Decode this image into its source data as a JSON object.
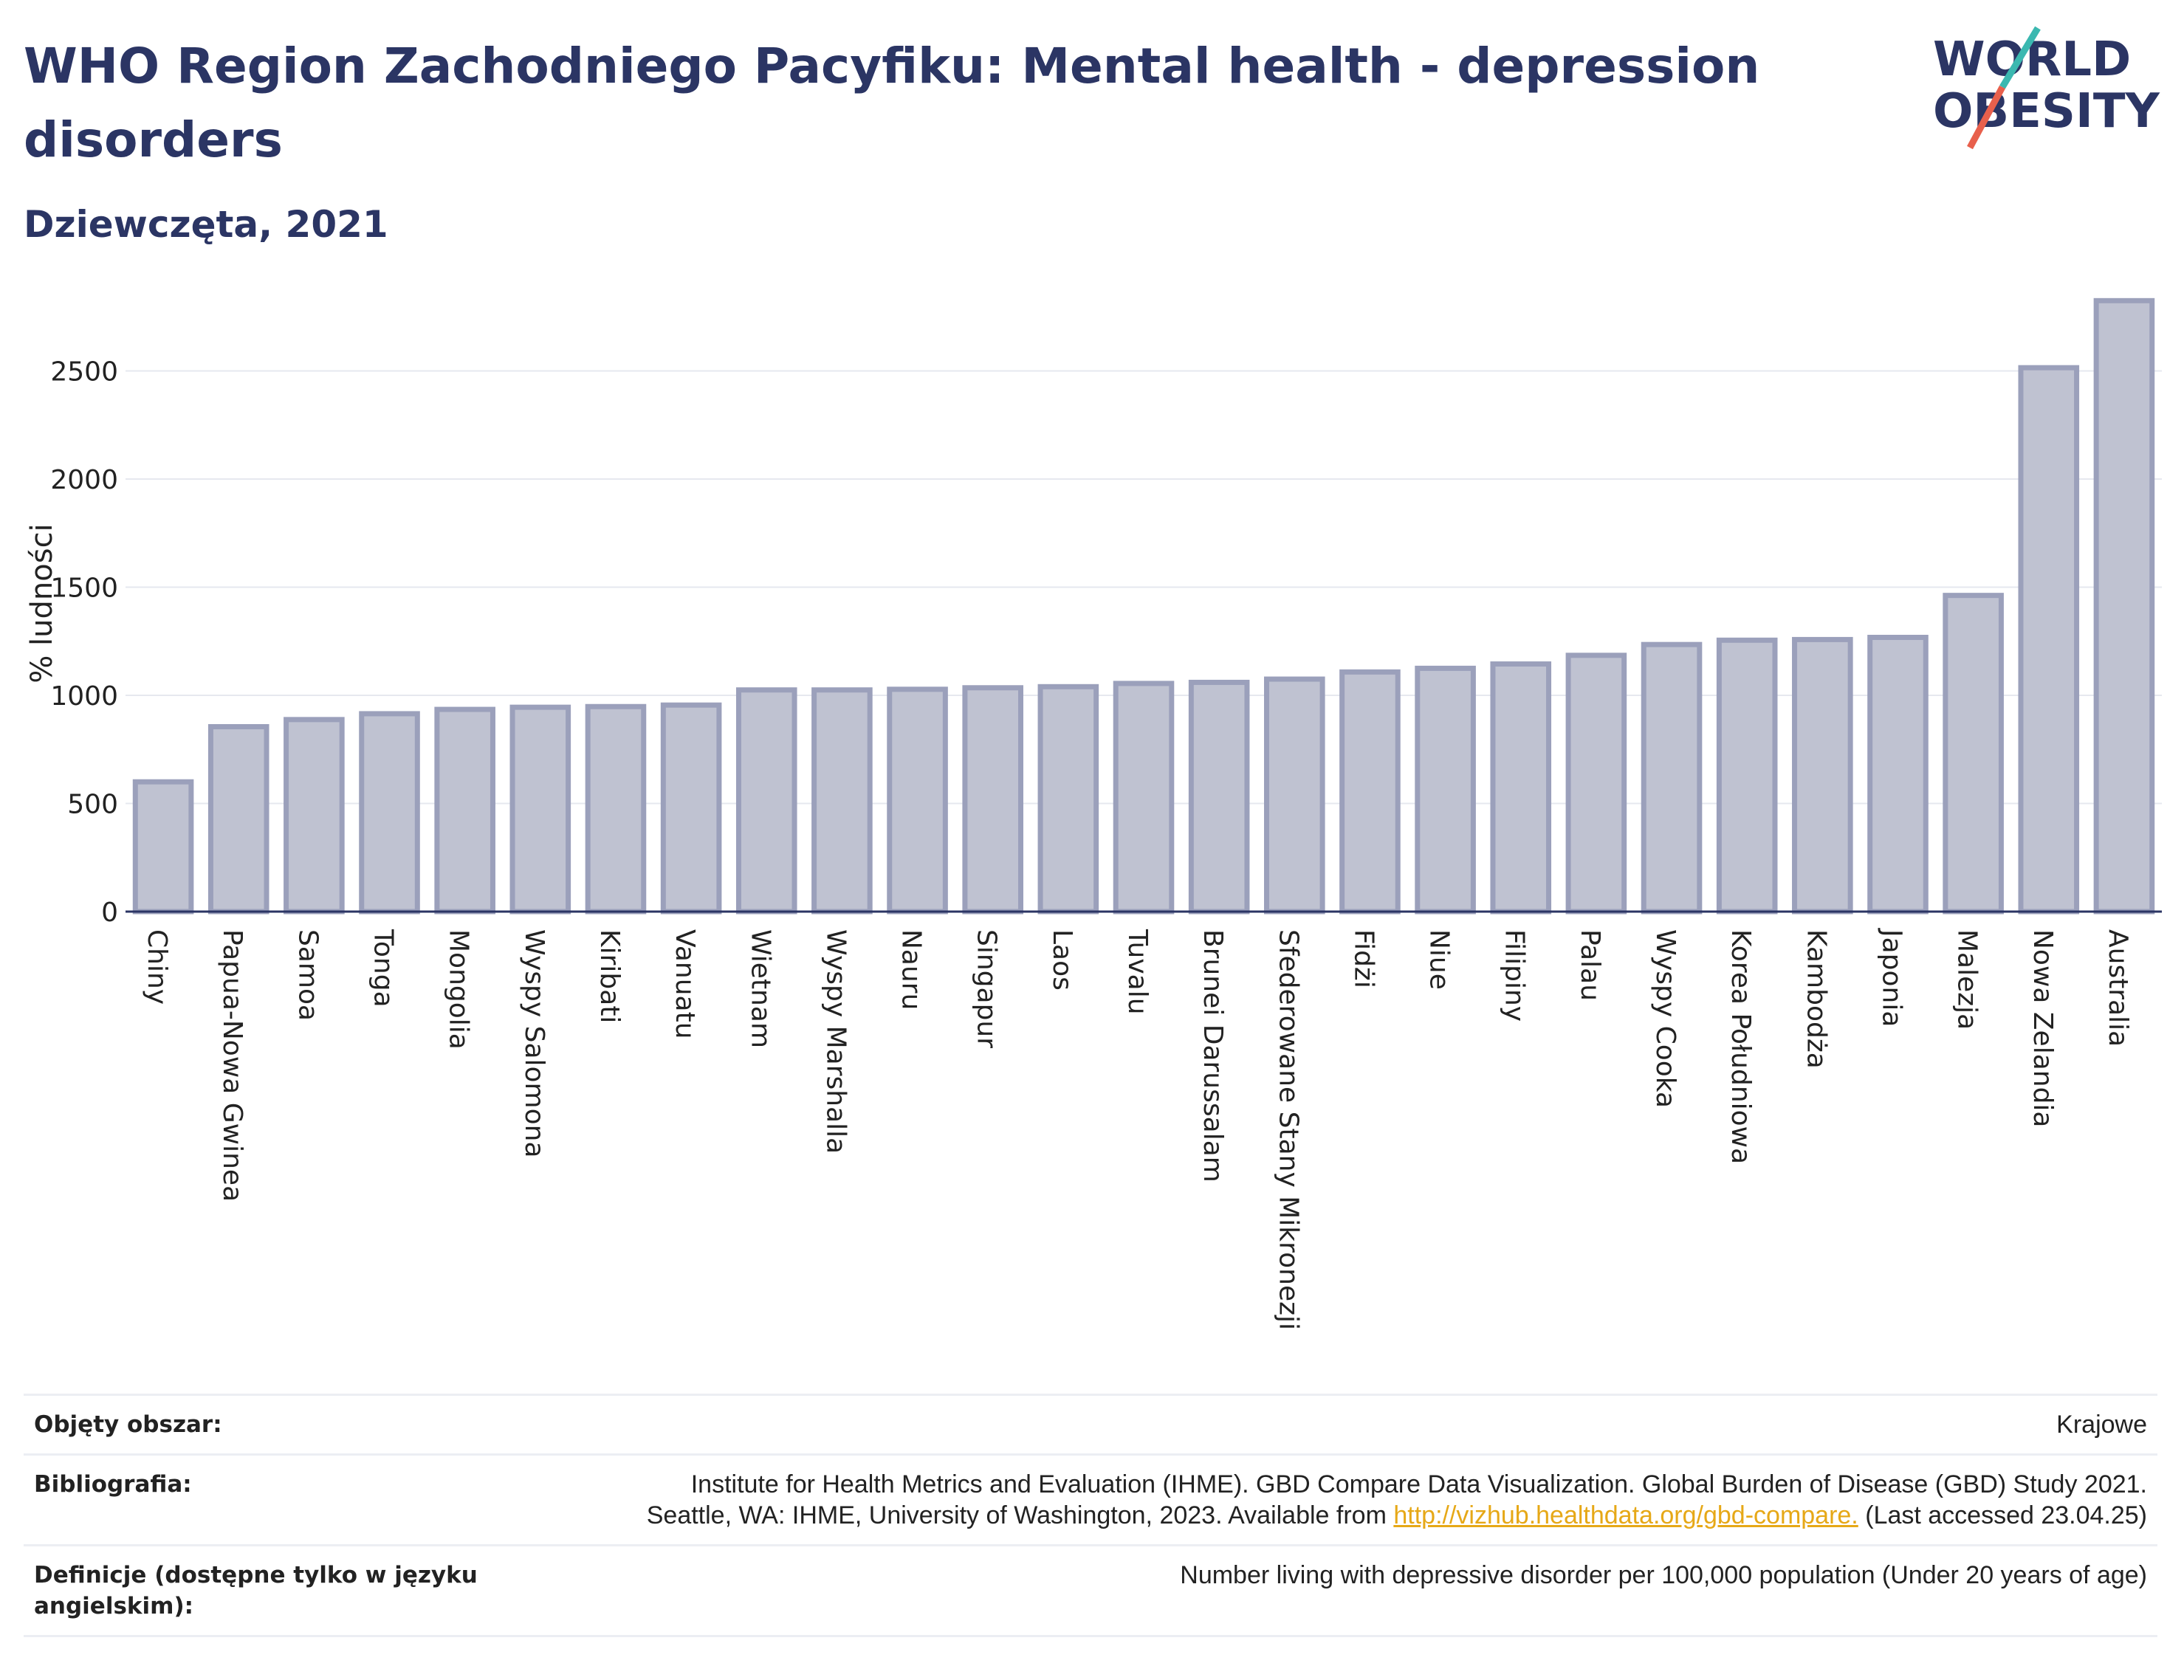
{
  "header": {
    "title": "WHO Region Zachodniego Pacyfiku: Mental health - depression disorders",
    "subtitle": "Dziewczęta, 2021"
  },
  "logo": {
    "line1": "WORLD",
    "line2": "OBESITY"
  },
  "colors": {
    "title": "#2b3564",
    "bar_fill": "#bfc2d1",
    "bar_stroke": "#9ba0bb",
    "link": "#e6a817",
    "logo_teal": "#3bb8b0",
    "logo_red": "#e8604c"
  },
  "chart_data": {
    "type": "bar",
    "ylabel": "% ludności",
    "xlabel": "",
    "ylim": [
      0,
      2850
    ],
    "yticks": [
      0,
      500,
      1000,
      1500,
      2000,
      2500
    ],
    "grid": true,
    "categories": [
      "Chiny",
      "Papua-Nowa Gwinea",
      "Samoa",
      "Tonga",
      "Mongolia",
      "Wyspy Salomona",
      "Kiribati",
      "Vanuatu",
      "Wietnam",
      "Wyspy Marshalla",
      "Nauru",
      "Singapur",
      "Laos",
      "Tuvalu",
      "Brunei Darussalam",
      "Sfederowane Stany Mikronezji",
      "Fidżi",
      "Niue",
      "Filipiny",
      "Palau",
      "Wyspy Cooka",
      "Korea Południowa",
      "Kambodża",
      "Japonia",
      "Malezja",
      "Nowa Zelandia",
      "Australia"
    ],
    "values": [
      600,
      855,
      888,
      915,
      935,
      945,
      948,
      955,
      1025,
      1025,
      1028,
      1035,
      1040,
      1055,
      1060,
      1075,
      1108,
      1125,
      1145,
      1185,
      1235,
      1255,
      1258,
      1268,
      1462,
      2515,
      2825
    ]
  },
  "footer": {
    "rows": [
      {
        "label": "Objęty obszar:",
        "lines": [
          "Krajowe"
        ]
      },
      {
        "label": "Bibliografia:",
        "lines": [
          "Institute for Health Metrics and Evaluation (IHME). GBD Compare Data Visualization. Global Burden of Disease (GBD) Study 2021."
        ],
        "line2_pre": "Seattle, WA: IHME, University of Washington, 2023. Available from ",
        "link": "http://vizhub.healthdata.org/gbd-compare.",
        "line2_post": " (Last accessed 23.04.25)"
      },
      {
        "label": "Definicje (dostępne tylko w języku angielskim):",
        "lines": [
          "Number living with depressive disorder per 100,000 population (Under 20 years of age)"
        ]
      }
    ]
  }
}
